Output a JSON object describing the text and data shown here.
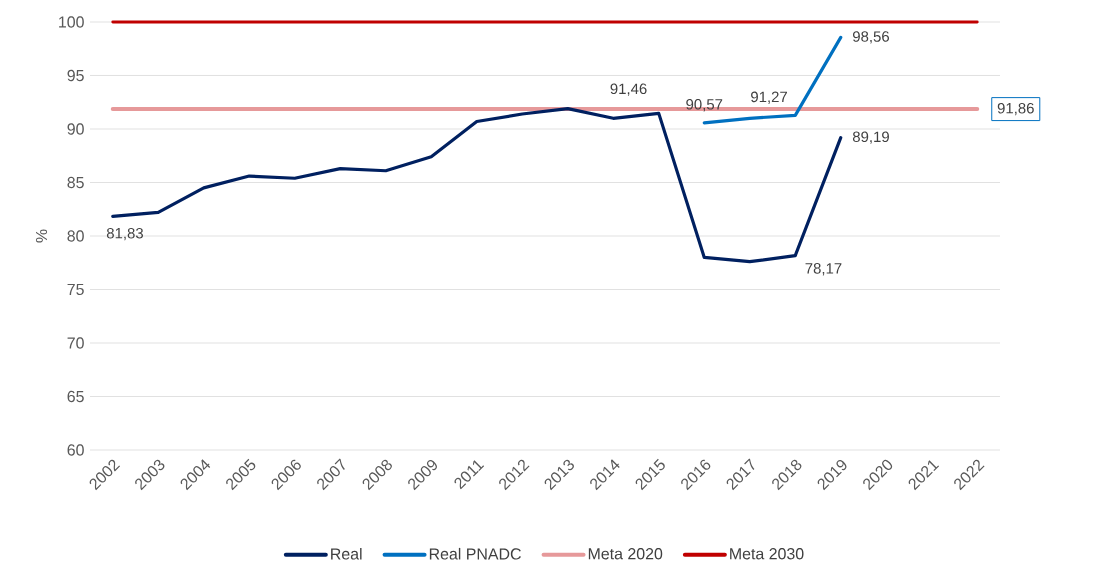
{
  "chart_data": {
    "type": "line",
    "ylabel": "%",
    "categories": [
      "2002",
      "2003",
      "2004",
      "2005",
      "2006",
      "2007",
      "2008",
      "2009",
      "2011",
      "2012",
      "2013",
      "2014",
      "2015",
      "2016",
      "2017",
      "2018",
      "2019",
      "2020",
      "2021",
      "2022"
    ],
    "series": [
      {
        "name": "Real",
        "color": "#002060",
        "values": [
          81.83,
          82.2,
          84.5,
          85.6,
          85.4,
          86.3,
          86.1,
          87.4,
          90.7,
          91.4,
          91.9,
          91.0,
          91.46,
          78.0,
          77.6,
          78.17,
          89.19,
          null,
          null,
          null
        ],
        "value_labels": [
          "81,83",
          null,
          null,
          null,
          null,
          null,
          null,
          null,
          null,
          null,
          null,
          null,
          "91,46",
          null,
          null,
          "78,17",
          "89,19",
          null,
          null,
          null
        ]
      },
      {
        "name": "Real PNADC",
        "color": "#0070c0",
        "values": [
          null,
          null,
          null,
          null,
          null,
          null,
          null,
          null,
          null,
          null,
          null,
          null,
          null,
          90.57,
          91.0,
          91.27,
          98.56,
          null,
          null,
          null
        ],
        "value_labels": [
          null,
          null,
          null,
          null,
          null,
          null,
          null,
          null,
          null,
          null,
          null,
          null,
          null,
          "90,57",
          null,
          "91,27",
          "98,56",
          null,
          null,
          null
        ]
      },
      {
        "name": "Meta 2020",
        "color": "#e6999a",
        "values": [
          91.86,
          91.86,
          91.86,
          91.86,
          91.86,
          91.86,
          91.86,
          91.86,
          91.86,
          91.86,
          91.86,
          91.86,
          91.86,
          91.86,
          91.86,
          91.86,
          91.86,
          91.86,
          91.86,
          91.86
        ],
        "value_labels": [
          null,
          null,
          null,
          null,
          null,
          null,
          null,
          null,
          null,
          null,
          null,
          null,
          null,
          null,
          null,
          null,
          null,
          null,
          null,
          "91,86"
        ]
      },
      {
        "name": "Meta 2030",
        "color": "#c00000",
        "values": [
          100,
          100,
          100,
          100,
          100,
          100,
          100,
          100,
          100,
          100,
          100,
          100,
          100,
          100,
          100,
          100,
          100,
          100,
          100,
          100
        ]
      }
    ],
    "ylim": [
      60,
      100
    ],
    "yticks": [
      60,
      65,
      70,
      75,
      80,
      85,
      90,
      95,
      100
    ],
    "grid": "y",
    "legend": "bottom",
    "marker": "none",
    "line_style": "solid"
  }
}
